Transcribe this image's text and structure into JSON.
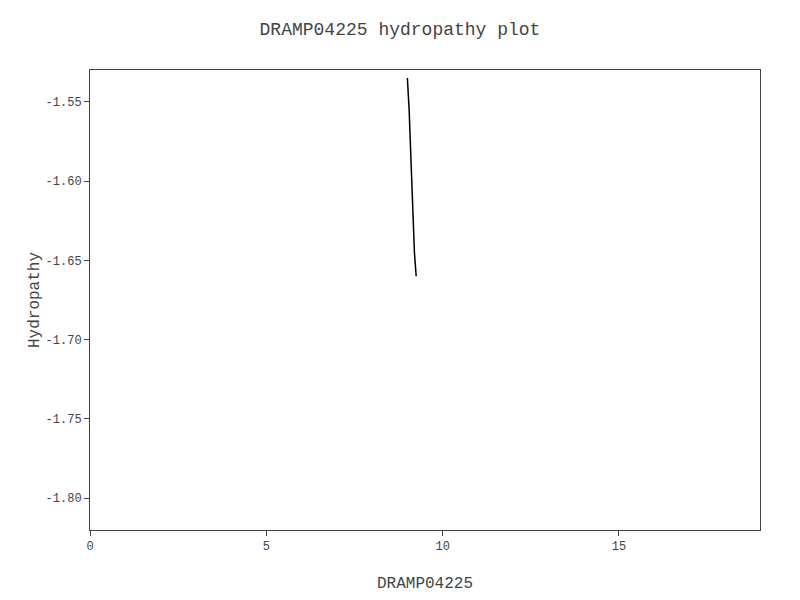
{
  "chart_data": {
    "type": "line",
    "title": "DRAMP04225 hydropathy plot",
    "xlabel": "DRAMP04225",
    "ylabel": "Hydropathy",
    "x": [
      9.0,
      9.05,
      9.1,
      9.15,
      9.2,
      9.25
    ],
    "values": [
      -1.535,
      -1.555,
      -1.585,
      -1.615,
      -1.645,
      -1.66
    ],
    "color": "#000000",
    "xlim": [
      0,
      19
    ],
    "ylim": [
      -1.82,
      -1.53
    ],
    "xticks": [
      0,
      5,
      10,
      15
    ],
    "yticks": [
      {
        "value": -1.8,
        "label": "-1.80"
      },
      -1.75,
      {
        "value": -1.7,
        "label": "-1.70"
      },
      -1.65,
      {
        "value": -1.6,
        "label": "-1.60"
      },
      -1.55
    ],
    "grid": false
  }
}
